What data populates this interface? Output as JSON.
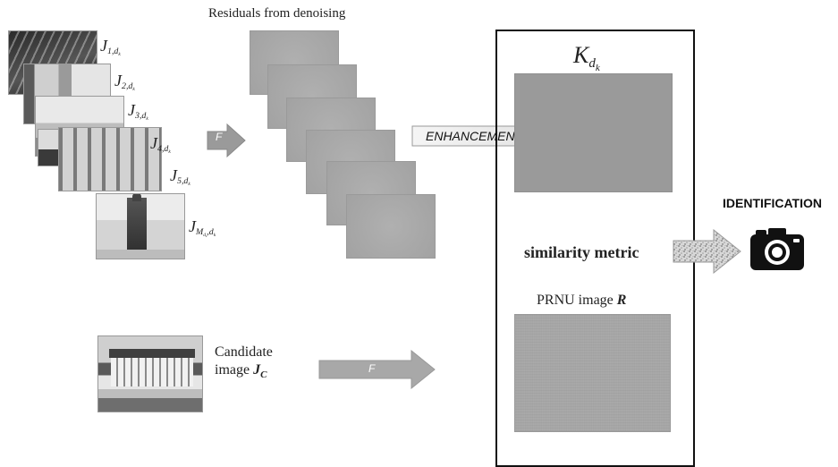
{
  "header": {
    "residuals_title": "Residuals from denoising"
  },
  "images": {
    "labels": [
      {
        "base": "J",
        "sub": "1,d",
        "subsub": "k"
      },
      {
        "base": "J",
        "sub": "2,d",
        "subsub": "k"
      },
      {
        "base": "J",
        "sub": "3,d",
        "subsub": "k"
      },
      {
        "base": "J",
        "sub": "4,d",
        "subsub": "k"
      },
      {
        "base": "J",
        "sub": "5,d",
        "subsub": "k"
      },
      {
        "base": "J",
        "sub": "M",
        "subsub": "d",
        "tail": "k",
        "tail2": ",d",
        "tail3": "k"
      }
    ]
  },
  "arrows": {
    "f_top": "F",
    "enhancement": "ENHANCEMENT",
    "f_bottom": "F"
  },
  "box": {
    "k_base": "K",
    "k_sub": "d",
    "k_subsub": "k",
    "similarity": "similarity metric",
    "prnu_prefix": "PRNU image ",
    "prnu_var": "R"
  },
  "candidate": {
    "line1": "Candidate",
    "line2_prefix": "image ",
    "line2_var": "J",
    "line2_sub": "C"
  },
  "identification": {
    "label": "IDENTIFICATION",
    "icon": "camera-icon"
  }
}
